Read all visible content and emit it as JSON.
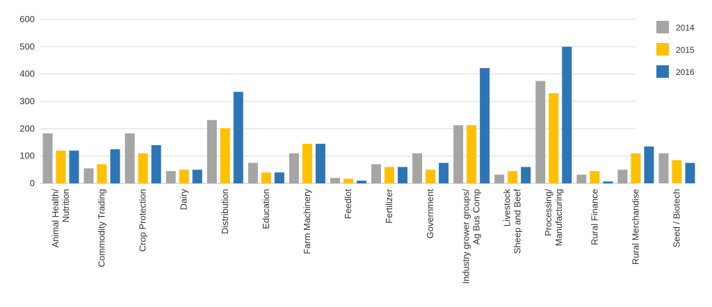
{
  "chart_data": {
    "type": "bar",
    "title": "",
    "xlabel": "",
    "ylabel": "",
    "ylim": [
      0,
      600
    ],
    "yticks": [
      0,
      100,
      200,
      300,
      400,
      500,
      600
    ],
    "grid": true,
    "legend_position": "right",
    "categories": [
      [
        "Animal Health/",
        "Nutrition"
      ],
      [
        "Commodity Trading"
      ],
      [
        "Crop Protection"
      ],
      [
        "Dairy"
      ],
      [
        "Distribution"
      ],
      [
        "Education"
      ],
      [
        "Farm Machinery"
      ],
      [
        "Feedlot"
      ],
      [
        "Fertilizer"
      ],
      [
        "Government"
      ],
      [
        "Industry grower groups/",
        "Ag Bus Comp"
      ],
      [
        "Livestock",
        "Sheep and Beef"
      ],
      [
        "Processing/",
        "Manufacturing"
      ],
      [
        "Rural Finance"
      ],
      [
        "Rural Merchandise"
      ],
      [
        "Seed / Biotech"
      ]
    ],
    "series": [
      {
        "name": "2014",
        "color": "#a5a5a5",
        "values": [
          183,
          55,
          183,
          45,
          232,
          75,
          110,
          20,
          70,
          110,
          213,
          32,
          375,
          32,
          50,
          110
        ]
      },
      {
        "name": "2015",
        "color": "#ffc000",
        "values": [
          120,
          70,
          110,
          50,
          202,
          40,
          145,
          17,
          60,
          50,
          213,
          45,
          330,
          45,
          110,
          85
        ]
      },
      {
        "name": "2016",
        "color": "#2e75b6",
        "values": [
          120,
          125,
          140,
          50,
          335,
          40,
          145,
          10,
          60,
          75,
          422,
          60,
          500,
          7,
          135,
          75
        ]
      }
    ]
  }
}
